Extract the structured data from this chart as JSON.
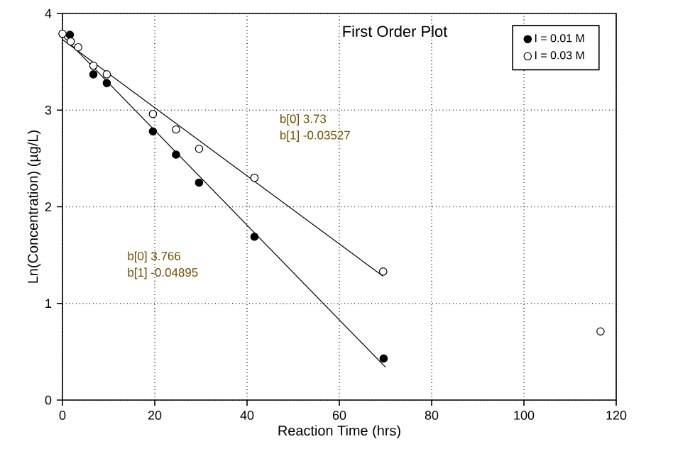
{
  "chart_data": {
    "type": "scatter",
    "title": "First Order Plot",
    "xlabel": "Reaction Time (hrs)",
    "ylabel": "Ln(Concentration) (µg/L)",
    "series": [
      {
        "name": "I = 0.01 M",
        "marker": "circle",
        "color": "#000000",
        "x": [
          1.6,
          6.7,
          9.6,
          19.6,
          24.6,
          29.6,
          41.6,
          69.6
        ],
        "values": [
          3.78,
          3.37,
          3.28,
          2.78,
          2.54,
          2.25,
          1.69,
          0.43
        ]
      },
      {
        "name": "I = 0.03 M",
        "marker": "circle",
        "color": "#ffffff",
        "x": [
          0,
          1.8,
          3.4,
          6.7,
          9.6,
          19.6,
          24.6,
          29.6,
          41.6,
          69.5,
          116.6
        ],
        "values": [
          3.79,
          3.71,
          3.65,
          3.46,
          3.37,
          2.96,
          2.8,
          2.6,
          2.3,
          1.33,
          0.71
        ]
      },
      {
        "type": "line",
        "marker": "none",
        "color": "#000000",
        "x": [
          0,
          70
        ],
        "values": [
          3.77,
          0.34
        ]
      },
      {
        "type": "line",
        "marker": "none",
        "color": "#000000",
        "x": [
          0,
          69.5
        ],
        "values": [
          3.73,
          1.28
        ]
      }
    ],
    "annotations": [
      "b[0]  3.73",
      "b[1]  -0.03527",
      "b[0]  3.766",
      "b[1]  -0.04895"
    ],
    "xlim": [
      0,
      120
    ],
    "xticks": [
      0,
      20,
      40,
      60,
      80,
      100,
      120
    ],
    "ylim": [
      0,
      4
    ],
    "yticks": [
      0,
      1,
      2,
      3,
      4
    ],
    "grid": true,
    "legend": "top right",
    "line_style": "solid"
  }
}
